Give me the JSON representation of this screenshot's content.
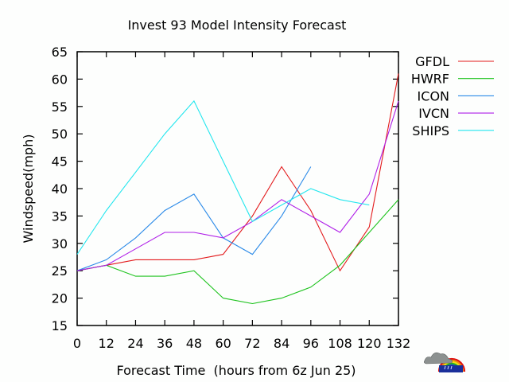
{
  "chart_data": {
    "type": "line",
    "title": "Invest 93 Model Intensity Forecast",
    "xlabel": "Forecast Time  (hours from 6z Jun 25)",
    "ylabel": "Windspeed(mph)",
    "x": [
      0,
      12,
      24,
      36,
      48,
      60,
      72,
      84,
      96,
      108,
      120,
      132
    ],
    "xticks": [
      "0",
      "12",
      "24",
      "36",
      "48",
      "60",
      "72",
      "84",
      "96",
      "108",
      "120",
      "132"
    ],
    "yticks": [
      "15",
      "20",
      "25",
      "30",
      "35",
      "40",
      "45",
      "50",
      "55",
      "60",
      "65"
    ],
    "xlim": [
      0,
      132
    ],
    "ylim": [
      15,
      65
    ],
    "grid": false,
    "legend_position": "right",
    "series": [
      {
        "name": "GFDL",
        "color": "#e31a1c",
        "x": [
          0,
          12,
          24,
          36,
          48,
          60,
          72,
          84,
          96,
          108,
          120,
          132
        ],
        "values": [
          25,
          26,
          27,
          27,
          27,
          28,
          35,
          44,
          36,
          25,
          33,
          61
        ]
      },
      {
        "name": "HWRF",
        "color": "#1ec31e",
        "x": [
          0,
          12,
          24,
          36,
          48,
          60,
          72,
          84,
          96,
          108,
          120,
          132
        ],
        "values": [
          25,
          26,
          24,
          24,
          25,
          20,
          19,
          20,
          22,
          26,
          32,
          38
        ]
      },
      {
        "name": "ICON",
        "color": "#2b8ae8",
        "x": [
          0,
          12,
          24,
          36,
          48,
          60,
          72,
          84,
          96
        ],
        "values": [
          25,
          27,
          31,
          36,
          39,
          31,
          28,
          35,
          44
        ]
      },
      {
        "name": "IVCN",
        "color": "#b020e8",
        "x": [
          0,
          12,
          24,
          36,
          48,
          60,
          72,
          84,
          96,
          108,
          120,
          132
        ],
        "values": [
          25,
          26,
          29,
          32,
          32,
          31,
          34,
          38,
          35,
          32,
          39,
          56
        ]
      },
      {
        "name": "SHIPS",
        "color": "#22e6ee",
        "x": [
          0,
          12,
          24,
          36,
          48,
          60,
          72,
          84,
          96,
          108,
          120
        ],
        "values": [
          28,
          36,
          43,
          50,
          56,
          45,
          34,
          37,
          40,
          38,
          37
        ]
      }
    ]
  },
  "logo": {
    "name": "weather-logo"
  }
}
